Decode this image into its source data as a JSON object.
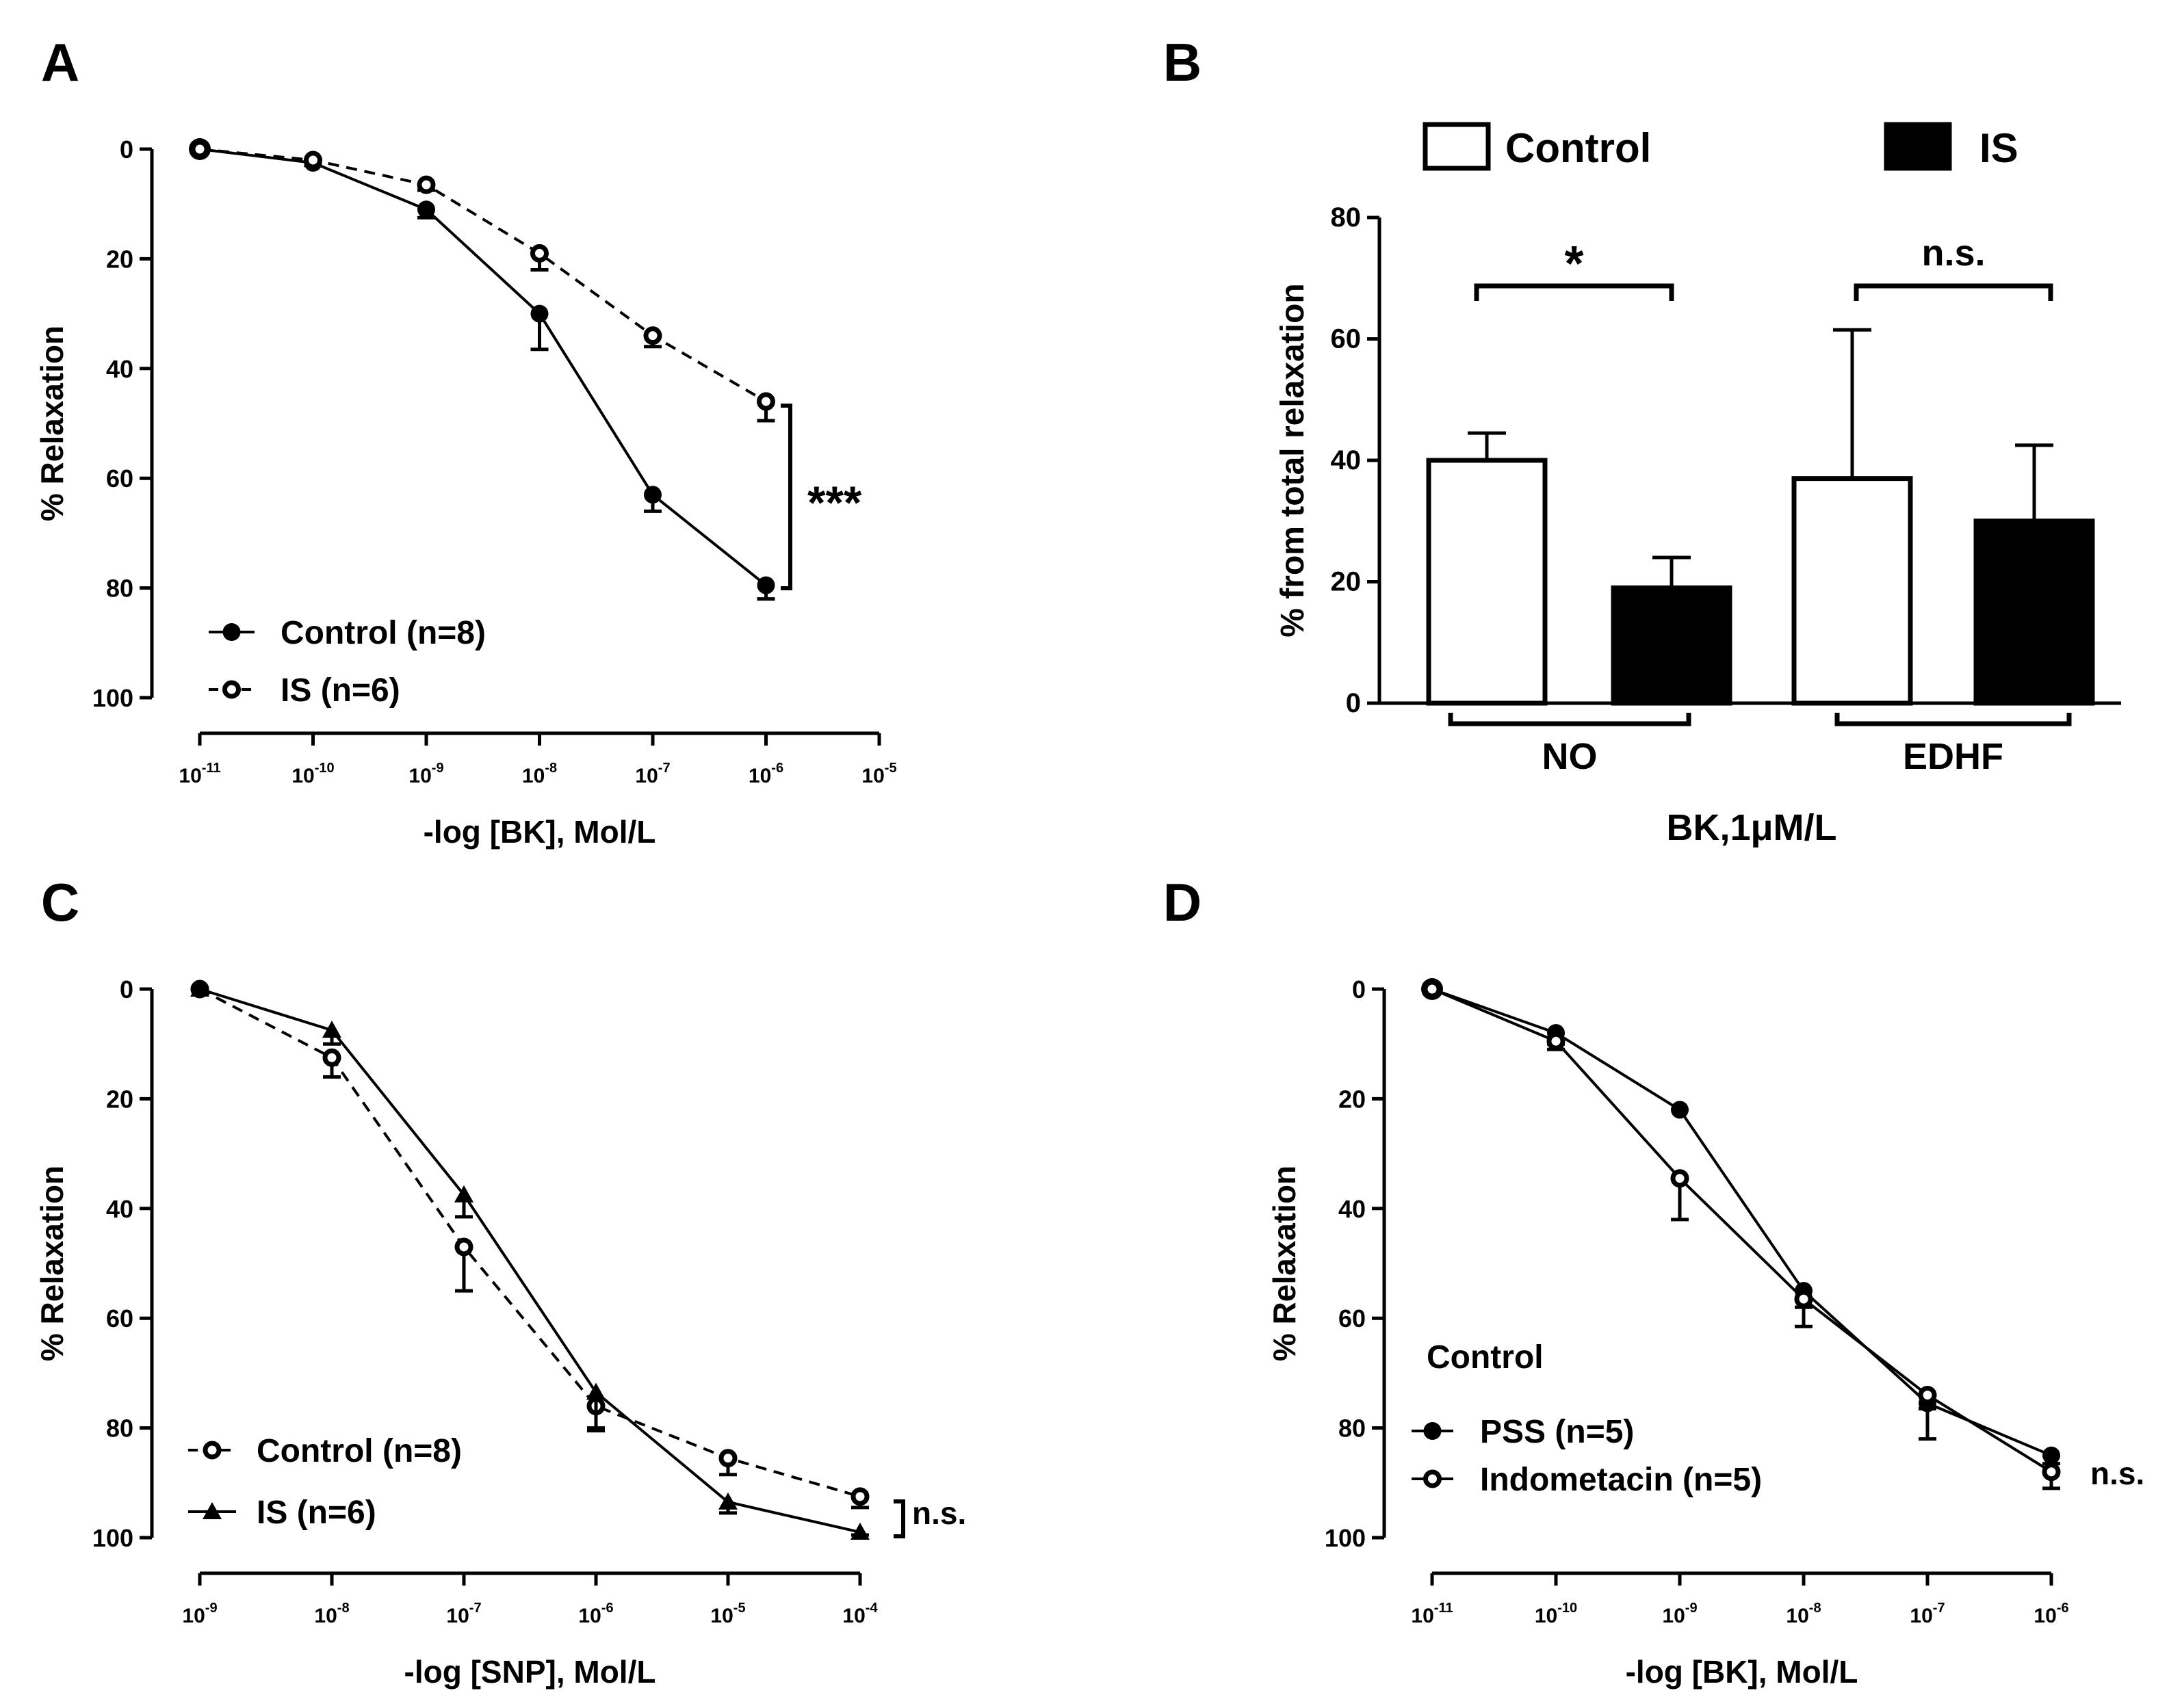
{
  "chart_data": [
    {
      "panel_label": "A",
      "type": "line",
      "xlabel": "-log [BK], Mol/L",
      "ylabel": "% Relaxation",
      "x_ticks": [
        -11,
        -10,
        -9,
        -8,
        -7,
        -6,
        -5
      ],
      "y_ticks": [
        0,
        20,
        40,
        60,
        80,
        100
      ],
      "ylim": [
        0,
        100
      ],
      "y_inverted": true,
      "series": [
        {
          "name": "Control (n=8)",
          "marker": "filled-circle",
          "line": "solid",
          "x": [
            -11,
            -10,
            -9,
            -8,
            -7,
            -6
          ],
          "y": [
            0,
            2.5,
            11,
            30,
            63,
            79.5
          ],
          "err": [
            0,
            0.5,
            1.5,
            6.5,
            3,
            2.5
          ]
        },
        {
          "name": "IS (n=6)",
          "marker": "open-circle",
          "line": "dashed",
          "x": [
            -11,
            -10,
            -9,
            -8,
            -7,
            -6
          ],
          "y": [
            0,
            2,
            6.5,
            19,
            34,
            46
          ],
          "err": [
            0,
            0.5,
            1,
            3,
            2,
            3.5
          ]
        }
      ],
      "annotation": "***"
    },
    {
      "panel_label": "B",
      "type": "bar",
      "xlabel": "BK,1μM/L",
      "ylabel": "% from total relaxation",
      "ylim": [
        0,
        80
      ],
      "y_ticks": [
        0,
        20,
        40,
        60,
        80
      ],
      "groups": [
        "NO",
        "EDHF"
      ],
      "series": [
        {
          "name": "Control",
          "fill": "#ffffff",
          "values": [
            40,
            37
          ],
          "err": [
            4.5,
            24.5
          ]
        },
        {
          "name": "IS",
          "fill": "#000000",
          "values": [
            19,
            30
          ],
          "err": [
            5,
            12.5
          ]
        }
      ],
      "significance": [
        "*",
        "n.s."
      ]
    },
    {
      "panel_label": "C",
      "type": "line",
      "xlabel": "-log [SNP], Mol/L",
      "ylabel": "% Relaxation",
      "x_ticks": [
        -9,
        -8,
        -7,
        -6,
        -5,
        -4
      ],
      "y_ticks": [
        0,
        20,
        40,
        60,
        80,
        100
      ],
      "ylim": [
        0,
        100
      ],
      "y_inverted": true,
      "series": [
        {
          "name": "Control (n=8)",
          "marker": "open-circle",
          "line": "dashed",
          "x": [
            -9,
            -8,
            -7,
            -6,
            -5,
            -4
          ],
          "y": [
            0,
            12.5,
            47,
            76,
            85.5,
            92.5
          ],
          "err": [
            0,
            3.5,
            8,
            4,
            3,
            2
          ]
        },
        {
          "name": "IS (n=6)",
          "marker": "triangle",
          "line": "solid",
          "x": [
            -9,
            -8,
            -7,
            -6,
            -5,
            -4
          ],
          "y": [
            0,
            7.5,
            37.5,
            73.5,
            93.5,
            99
          ],
          "err": [
            0,
            2.5,
            4,
            7,
            2,
            0.5
          ]
        }
      ],
      "annotation": "n.s."
    },
    {
      "panel_label": "D",
      "type": "line",
      "xlabel": "-log [BK], Mol/L",
      "ylabel": "% Relaxation",
      "x_ticks": [
        -11,
        -10,
        -9,
        -8,
        -7,
        -6
      ],
      "y_ticks": [
        0,
        20,
        40,
        60,
        80,
        100
      ],
      "ylim": [
        0,
        100
      ],
      "y_inverted": true,
      "legend_title": "Control",
      "series": [
        {
          "name": "PSS (n=5)",
          "marker": "filled-circle",
          "line": "solid",
          "x": [
            -11,
            -10,
            -9,
            -8,
            -7,
            -6
          ],
          "y": [
            0,
            8,
            22,
            55,
            75.5,
            85
          ],
          "err": [
            0,
            2,
            0,
            6.5,
            6.5,
            1.5
          ]
        },
        {
          "name": "Indometacin (n=5)",
          "marker": "open-circle",
          "line": "solid",
          "x": [
            -11,
            -10,
            -9,
            -8,
            -7,
            -6
          ],
          "y": [
            0,
            9.5,
            34.5,
            56.5,
            74,
            88
          ],
          "err": [
            0,
            1.5,
            7.5,
            1.5,
            2.5,
            3
          ]
        }
      ],
      "annotation": "n.s."
    }
  ]
}
